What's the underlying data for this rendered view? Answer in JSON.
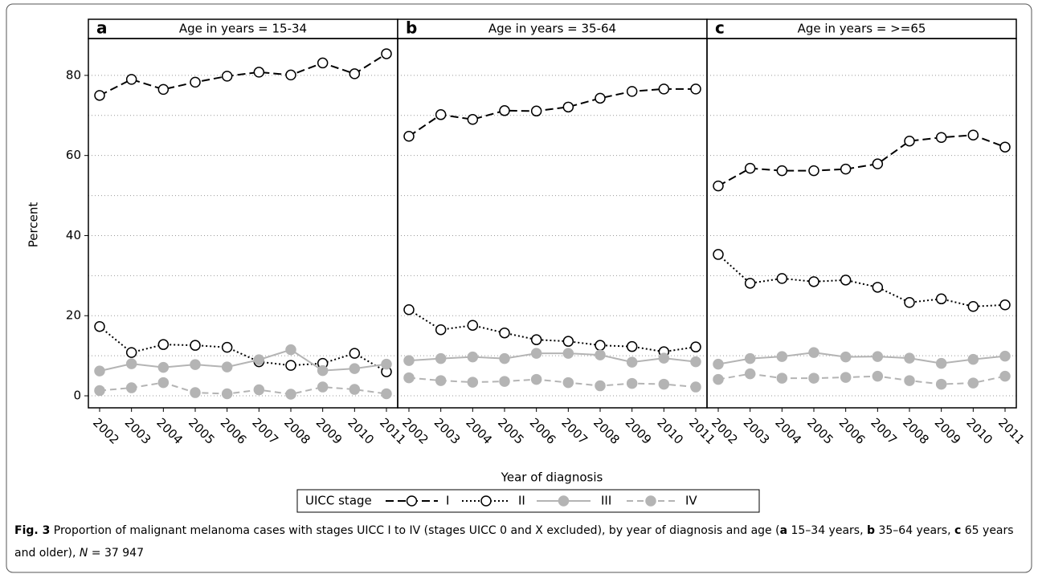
{
  "chart_data": [
    {
      "type": "line",
      "panel": "a",
      "title": "Age in years = 15-34",
      "categories": [
        "2002",
        "2003",
        "2004",
        "2005",
        "2006",
        "2007",
        "2008",
        "2009",
        "2010",
        "2011"
      ],
      "ylim": [
        -3,
        89.2
      ],
      "yticks": [
        0,
        20,
        40,
        60,
        80
      ],
      "minor_grid": [
        10,
        30,
        50,
        70
      ],
      "grid": true,
      "series": [
        {
          "values": [
            75,
            79,
            76.5,
            78.3,
            79.8,
            80.8,
            80.1,
            83.1,
            80.4,
            85.4
          ]
        },
        {
          "values": [
            17.3,
            10.8,
            12.8,
            12.6,
            12.1,
            8.5,
            7.6,
            8.1,
            10.6,
            6
          ]
        },
        {
          "values": [
            6.2,
            8,
            7.1,
            7.8,
            7.2,
            9,
            11.5,
            6.3,
            6.8,
            7.9
          ]
        },
        {
          "values": [
            1.3,
            2,
            3.3,
            0.8,
            0.5,
            1.5,
            0.4,
            2.2,
            1.6,
            0.5
          ]
        }
      ]
    },
    {
      "type": "line",
      "panel": "b",
      "title": "Age in years = 35-64",
      "categories": [
        "2002",
        "2003",
        "2004",
        "2005",
        "2006",
        "2007",
        "2008",
        "2009",
        "2010",
        "2011"
      ],
      "ylim": [
        -3,
        89.2
      ],
      "yticks": [
        0,
        20,
        40,
        60,
        80
      ],
      "minor_grid": [
        10,
        30,
        50,
        70
      ],
      "grid": true,
      "series": [
        {
          "values": [
            64.8,
            70.2,
            69,
            71.2,
            71.1,
            72.1,
            74.3,
            76,
            76.6,
            76.6
          ]
        },
        {
          "values": [
            21.5,
            16.5,
            17.6,
            15.7,
            14,
            13.6,
            12.6,
            12.3,
            11,
            12.2
          ]
        },
        {
          "values": [
            8.8,
            9.3,
            9.7,
            9.3,
            10.6,
            10.6,
            10.2,
            8.4,
            9.4,
            8.5
          ]
        },
        {
          "values": [
            4.5,
            3.8,
            3.4,
            3.6,
            4.1,
            3.3,
            2.5,
            3.1,
            2.9,
            2.2
          ]
        }
      ]
    },
    {
      "type": "line",
      "panel": "c",
      "title": "Age in years = >=65",
      "categories": [
        "2002",
        "2003",
        "2004",
        "2005",
        "2006",
        "2007",
        "2008",
        "2009",
        "2010",
        "2011"
      ],
      "ylim": [
        -3,
        89.2
      ],
      "yticks": [
        0,
        20,
        40,
        60,
        80
      ],
      "minor_grid": [
        10,
        30,
        50,
        70
      ],
      "grid": true,
      "series": [
        {
          "values": [
            52.4,
            56.8,
            56.2,
            56.2,
            56.6,
            57.9,
            63.6,
            64.5,
            65.1,
            62.1
          ]
        },
        {
          "values": [
            35.3,
            28.1,
            29.3,
            28.5,
            28.9,
            27.1,
            23.3,
            24.2,
            22.3,
            22.7
          ]
        },
        {
          "values": [
            7.9,
            9.3,
            9.8,
            10.8,
            9.7,
            9.8,
            9.4,
            8.1,
            9.1,
            9.9
          ]
        },
        {
          "values": [
            4.1,
            5.5,
            4.4,
            4.4,
            4.6,
            4.9,
            3.8,
            2.9,
            3.2,
            4.9
          ]
        }
      ]
    }
  ],
  "y_label": "Percent",
  "x_label": "Year of diagnosis",
  "legend": {
    "title": "UICC stage",
    "series": [
      {
        "name": "I",
        "color": "#000000",
        "dash": "10,5",
        "marker_fill": "#ffffff"
      },
      {
        "name": "II",
        "color": "#000000",
        "dash": "2,3",
        "marker_fill": "#ffffff"
      },
      {
        "name": "III",
        "color": "#b4b4b4",
        "dash": "none",
        "marker_fill": "#b4b4b4"
      },
      {
        "name": "IV",
        "color": "#b4b4b4",
        "dash": "8,5",
        "marker_fill": "#b4b4b4"
      }
    ]
  },
  "caption": [
    {
      "text": "Fig. 3",
      "bold": true
    },
    {
      "text": " Proportion of malignant melanoma cases with stages UICC I to IV (stages UICC 0 and X excluded), by year of diagnosis and age (",
      "bold": false
    },
    {
      "text": "a",
      "bold": true
    },
    {
      "text": " 15–34 years, ",
      "bold": false
    },
    {
      "text": "b",
      "bold": true
    },
    {
      "text": " 35–64 years, ",
      "bold": false
    },
    {
      "text": "c",
      "bold": true
    },
    {
      "text": " 65 years and older), ",
      "bold": false
    },
    {
      "text": "N",
      "italic": true
    },
    {
      "text": " = 37 947",
      "bold": false
    }
  ]
}
